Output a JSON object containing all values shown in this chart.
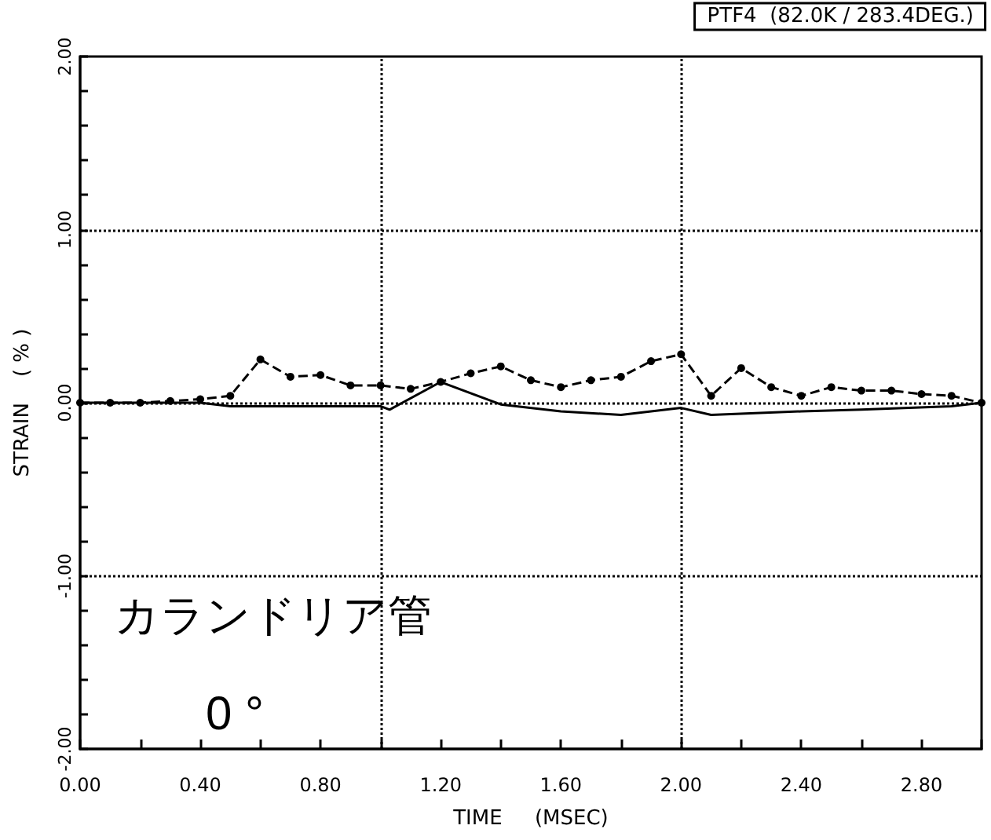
{
  "chart_data": {
    "type": "line",
    "title": "PTF4  (82.0K / 283.4DEG.)",
    "xlabel": "TIME     (MSEC)",
    "ylabel": "STRAIN    ( % )",
    "annotations": [
      "カランドリア管",
      "0 °"
    ],
    "xlim": [
      0,
      3.0
    ],
    "ylim": [
      -2,
      2
    ],
    "xticks": [
      {
        "value": 0,
        "label": "0.00"
      },
      {
        "value": 0.2,
        "label": null
      },
      {
        "value": 0.4,
        "label": "0.40"
      },
      {
        "value": 0.6,
        "label": null
      },
      {
        "value": 0.8,
        "label": "0.80"
      },
      {
        "value": 1.0,
        "label": null
      },
      {
        "value": 1.2,
        "label": "1.20"
      },
      {
        "value": 1.4,
        "label": null
      },
      {
        "value": 1.6,
        "label": "1.60"
      },
      {
        "value": 1.8,
        "label": null
      },
      {
        "value": 2.0,
        "label": "2.00"
      },
      {
        "value": 2.2,
        "label": null
      },
      {
        "value": 2.4,
        "label": "2.40"
      },
      {
        "value": 2.6,
        "label": null
      },
      {
        "value": 2.8,
        "label": "2.80"
      },
      {
        "value": 3.0,
        "label": null
      }
    ],
    "yticks": [
      {
        "value": -2,
        "label": "-2.00"
      },
      {
        "value": -1.8,
        "label": null
      },
      {
        "value": -1.6,
        "label": null
      },
      {
        "value": -1.4,
        "label": null
      },
      {
        "value": -1.2,
        "label": null
      },
      {
        "value": -1,
        "label": "-1.00"
      },
      {
        "value": -0.8,
        "label": null
      },
      {
        "value": -0.6,
        "label": null
      },
      {
        "value": -0.4,
        "label": null
      },
      {
        "value": -0.2,
        "label": null
      },
      {
        "value": 0,
        "label": "0.00"
      },
      {
        "value": 0.2,
        "label": null
      },
      {
        "value": 0.4,
        "label": null
      },
      {
        "value": 0.6,
        "label": null
      },
      {
        "value": 0.8,
        "label": null
      },
      {
        "value": 1,
        "label": "1.00"
      },
      {
        "value": 1.2,
        "label": null
      },
      {
        "value": 1.4,
        "label": null
      },
      {
        "value": 1.6,
        "label": null
      },
      {
        "value": 1.8,
        "label": null
      },
      {
        "value": 2,
        "label": "2.00"
      }
    ],
    "grid": false,
    "ref_lines": [
      {
        "axis": "x",
        "value": 1.0,
        "label": null,
        "line_style": "dotted"
      },
      {
        "axis": "x",
        "value": 2.0,
        "label": null,
        "line_style": "dotted"
      },
      {
        "axis": "y",
        "value": 1.0,
        "label": null,
        "line_style": "dotted"
      },
      {
        "axis": "y",
        "value": 0,
        "label": null,
        "line_style": "dotted"
      },
      {
        "axis": "y",
        "value": -1.0,
        "label": null,
        "line_style": "dotted"
      }
    ],
    "series": [
      {
        "color": "#000000",
        "line_style": "dashed",
        "marker": "circle",
        "x": [
          0,
          0.1,
          0.2,
          0.3,
          0.4,
          0.5,
          0.6,
          0.7,
          0.8,
          0.9,
          1.0,
          1.1,
          1.2,
          1.3,
          1.4,
          1.5,
          1.6,
          1.7,
          1.8,
          1.9,
          2.0,
          2.1,
          2.2,
          2.3,
          2.4,
          2.5,
          2.6,
          2.7,
          2.8,
          2.9,
          3.0
        ],
        "values": [
          0,
          0,
          0,
          0.01,
          0.02,
          0.04,
          0.25,
          0.15,
          0.16,
          0.1,
          0.1,
          0.08,
          0.12,
          0.17,
          0.21,
          0.13,
          0.09,
          0.13,
          0.15,
          0.24,
          0.28,
          0.04,
          0.2,
          0.09,
          0.04,
          0.09,
          0.07,
          0.07,
          0.05,
          0.04,
          0
        ]
      },
      {
        "color": "#000000",
        "line_style": "solid",
        "marker": "none",
        "x": [
          0,
          0.4,
          0.5,
          1.0,
          1.03,
          1.2,
          1.4,
          1.6,
          1.8,
          2.0,
          2.1,
          2.4,
          2.6,
          2.9,
          3.0
        ],
        "values": [
          0,
          0,
          -0.02,
          -0.02,
          -0.04,
          0.12,
          -0.01,
          -0.05,
          -0.07,
          -0.03,
          -0.07,
          -0.05,
          -0.04,
          -0.02,
          0
        ]
      }
    ]
  }
}
